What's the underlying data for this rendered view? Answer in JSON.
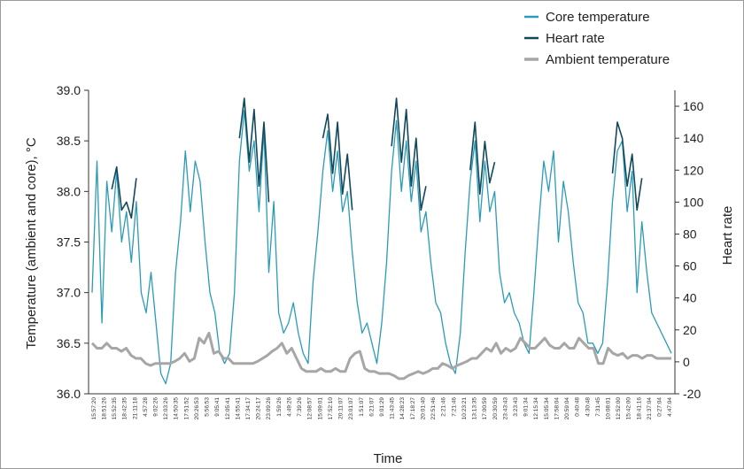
{
  "chart_data": {
    "type": "line",
    "xlabel": "Time",
    "ylabel_left": "Temperature (ambient and core), °C",
    "ylabel_right": "Heart rate",
    "ylim_left": [
      36.0,
      39.0
    ],
    "yticks_left": [
      "36.0",
      "36.5",
      "37.0",
      "37.5",
      "38.0",
      "38.5",
      "39.0"
    ],
    "ylim_right": [
      -20,
      170
    ],
    "yticks_right": [
      "-20",
      "0",
      "20",
      "40",
      "60",
      "80",
      "100",
      "120",
      "140",
      "160"
    ],
    "legend_position": "top-right",
    "x_tick_labels": [
      "15:57:20",
      "18:51:26",
      "15:52:35",
      "18:42:35",
      "21:11:18",
      "4:57:28",
      "9:02:26",
      "12:03:26",
      "14:50:35",
      "17:51:52",
      "20:26:53",
      "5:56:53",
      "9:05:41",
      "12:05:41",
      "14:55:41",
      "17:34:17",
      "20:24:17",
      "23:09:26",
      "1:59:26",
      "4:49:26",
      "7:39:26",
      "12:08:57",
      "15:09:01",
      "17:52:10",
      "20:11:07",
      "23:01:07",
      "1:51:07",
      "6:21:07",
      "9:01:29",
      "11:43:45",
      "14:28:23",
      "17:18:27",
      "20:01:40",
      "22:51:46",
      "2:21:46",
      "7:21:46",
      "10:23:21",
      "13:13:35",
      "17:00:59",
      "20:30:59",
      "23:43:43",
      "3:23:43",
      "9:01:34",
      "12:15:34",
      "15:05:34",
      "17:58:04",
      "20:59:04",
      "0:40:48",
      "4:30:48",
      "7:31:45",
      "10:08:01",
      "12:52:00",
      "15:42:00",
      "18:41:16",
      "21:37:04",
      "0:27:04",
      "4:47:04"
    ],
    "series": [
      {
        "name": "Core temperature",
        "color": "#2b9bb8",
        "axis": "left",
        "values": [
          37.0,
          38.3,
          36.7,
          38.1,
          37.6,
          38.2,
          37.5,
          37.8,
          37.3,
          37.9,
          37.0,
          36.8,
          37.2,
          36.7,
          36.2,
          36.1,
          36.3,
          37.2,
          37.7,
          38.4,
          37.8,
          38.3,
          38.1,
          37.5,
          37.0,
          36.8,
          36.4,
          36.3,
          36.4,
          37.0,
          38.3,
          38.8,
          38.2,
          38.5,
          37.8,
          38.6,
          37.2,
          37.9,
          36.8,
          36.6,
          36.7,
          36.9,
          36.6,
          36.4,
          36.3,
          37.1,
          37.6,
          38.2,
          38.6,
          38.0,
          38.4,
          37.8,
          38.0,
          37.4,
          36.9,
          36.6,
          36.7,
          36.5,
          36.3,
          36.7,
          37.3,
          38.2,
          38.7,
          38.0,
          38.5,
          37.9,
          38.3,
          37.6,
          37.8,
          37.3,
          36.9,
          36.8,
          36.5,
          36.3,
          36.2,
          36.6,
          37.4,
          38.1,
          38.5,
          37.7,
          38.3,
          37.8,
          38.0,
          37.2,
          36.9,
          37.0,
          36.8,
          36.7,
          36.5,
          36.4,
          37.0,
          37.7,
          38.3,
          38.0,
          38.4,
          37.5,
          38.1,
          37.8,
          37.3,
          36.9,
          36.8,
          36.5,
          36.5,
          36.4,
          36.5,
          37.1,
          37.9,
          38.4,
          38.5,
          37.8,
          38.2,
          37.0,
          37.7,
          37.2,
          36.8,
          36.7,
          36.6,
          36.5,
          36.4
        ]
      },
      {
        "name": "Heart rate",
        "color": "#12485c",
        "axis": "right",
        "values": [
          null,
          null,
          null,
          null,
          108,
          122,
          95,
          100,
          90,
          115,
          null,
          null,
          null,
          null,
          null,
          null,
          null,
          null,
          null,
          null,
          null,
          null,
          null,
          null,
          null,
          null,
          null,
          null,
          null,
          null,
          140,
          165,
          125,
          158,
          110,
          150,
          100,
          null,
          null,
          null,
          null,
          null,
          null,
          null,
          null,
          null,
          null,
          140,
          155,
          118,
          150,
          105,
          130,
          95,
          null,
          null,
          null,
          null,
          null,
          null,
          null,
          135,
          165,
          125,
          158,
          110,
          140,
          95,
          110,
          null,
          null,
          null,
          null,
          null,
          null,
          null,
          null,
          120,
          150,
          105,
          138,
          112,
          125,
          null,
          null,
          null,
          null,
          null,
          null,
          null,
          null,
          null,
          null,
          null,
          null,
          null,
          null,
          null,
          null,
          null,
          null,
          null,
          null,
          null,
          null,
          null,
          118,
          150,
          140,
          110,
          130,
          95,
          115,
          null,
          null,
          null,
          null,
          null,
          null
        ]
      },
      {
        "name": "Ambient temperature",
        "color": "#a6a6a6",
        "axis": "left",
        "values": [
          36.5,
          36.45,
          36.45,
          36.5,
          36.45,
          36.45,
          36.42,
          36.45,
          36.38,
          36.35,
          36.35,
          36.3,
          36.28,
          36.3,
          36.3,
          36.3,
          36.3,
          36.32,
          36.35,
          36.4,
          36.32,
          36.35,
          36.55,
          36.5,
          36.6,
          36.4,
          36.42,
          36.35,
          36.35,
          36.3,
          36.3,
          36.3,
          36.3,
          36.3,
          36.32,
          36.35,
          36.38,
          36.42,
          36.45,
          36.5,
          36.4,
          36.45,
          36.35,
          36.25,
          36.22,
          36.22,
          36.22,
          36.25,
          36.22,
          36.22,
          36.25,
          36.22,
          36.22,
          36.35,
          36.4,
          36.42,
          36.25,
          36.22,
          36.22,
          36.2,
          36.2,
          36.2,
          36.18,
          36.15,
          36.15,
          36.18,
          36.2,
          36.22,
          36.2,
          36.22,
          36.25,
          36.25,
          36.3,
          36.28,
          36.25,
          36.28,
          36.3,
          36.32,
          36.35,
          36.35,
          36.4,
          36.45,
          36.42,
          36.5,
          36.4,
          36.45,
          36.42,
          36.45,
          36.55,
          36.5,
          36.45,
          36.45,
          36.5,
          36.55,
          36.48,
          36.45,
          36.45,
          36.5,
          36.45,
          36.45,
          36.55,
          36.5,
          36.45,
          36.45,
          36.3,
          36.3,
          36.45,
          36.4,
          36.38,
          36.4,
          36.35,
          36.38,
          36.38,
          36.35,
          36.38,
          36.38,
          36.35,
          36.35,
          36.35,
          36.35
        ]
      }
    ]
  }
}
